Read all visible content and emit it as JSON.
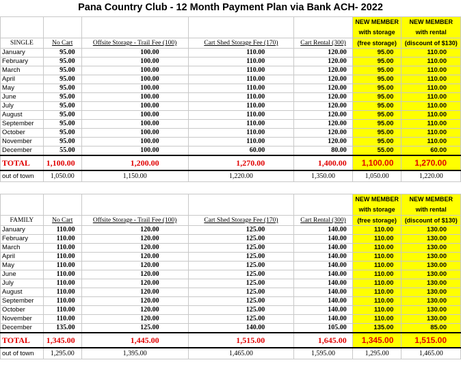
{
  "title": "Pana Country Club - 12 Month Payment Plan via Bank ACH- 2022",
  "new_member_header": {
    "storage_line1": "NEW MEMBER",
    "storage_line2": "with storage",
    "rental_line1": "NEW MEMBER",
    "rental_line2": "with rental"
  },
  "column_headers": [
    "No Cart",
    "Offsite Storage - Trail Fee (100)",
    "Cart Shed Storage Fee (170)",
    "Cart Rental (300)",
    "(free storage)",
    "(discount of $130)"
  ],
  "single": {
    "label": "SINGLE",
    "rows": [
      {
        "month": "January",
        "v": [
          "95.00",
          "100.00",
          "110.00",
          "120.00",
          "95.00",
          "110.00"
        ]
      },
      {
        "month": "February",
        "v": [
          "95.00",
          "100.00",
          "110.00",
          "120.00",
          "95.00",
          "110.00"
        ]
      },
      {
        "month": "March",
        "v": [
          "95.00",
          "100.00",
          "110.00",
          "120.00",
          "95.00",
          "110.00"
        ]
      },
      {
        "month": "April",
        "v": [
          "95.00",
          "100.00",
          "110.00",
          "120.00",
          "95.00",
          "110.00"
        ]
      },
      {
        "month": "May",
        "v": [
          "95.00",
          "100.00",
          "110.00",
          "120.00",
          "95.00",
          "110.00"
        ]
      },
      {
        "month": "June",
        "v": [
          "95.00",
          "100.00",
          "110.00",
          "120.00",
          "95.00",
          "110.00"
        ]
      },
      {
        "month": "July",
        "v": [
          "95.00",
          "100.00",
          "110.00",
          "120.00",
          "95.00",
          "110.00"
        ]
      },
      {
        "month": "August",
        "v": [
          "95.00",
          "100.00",
          "110.00",
          "120.00",
          "95.00",
          "110.00"
        ]
      },
      {
        "month": "September",
        "v": [
          "95.00",
          "100.00",
          "110.00",
          "120.00",
          "95.00",
          "110.00"
        ]
      },
      {
        "month": "October",
        "v": [
          "95.00",
          "100.00",
          "110.00",
          "120.00",
          "95.00",
          "110.00"
        ]
      },
      {
        "month": "November",
        "v": [
          "95.00",
          "100.00",
          "110.00",
          "120.00",
          "95.00",
          "110.00"
        ]
      },
      {
        "month": "December",
        "v": [
          "55.00",
          "100.00",
          "60.00",
          "80.00",
          "55.00",
          "60.00"
        ]
      }
    ],
    "total": {
      "label": "TOTAL",
      "v": [
        "1,100.00",
        "1,200.00",
        "1,270.00",
        "1,400.00",
        "1,100.00",
        "1,270.00"
      ]
    },
    "out_of_town": {
      "label": "out of town",
      "v": [
        "1,050.00",
        "1,150.00",
        "1,220.00",
        "1,350.00",
        "1,050.00",
        "1,220.00"
      ]
    }
  },
  "family": {
    "label": "FAMILY",
    "rows": [
      {
        "month": "January",
        "v": [
          "110.00",
          "120.00",
          "125.00",
          "140.00",
          "110.00",
          "130.00"
        ]
      },
      {
        "month": "February",
        "v": [
          "110.00",
          "120.00",
          "125.00",
          "140.00",
          "110.00",
          "130.00"
        ]
      },
      {
        "month": "March",
        "v": [
          "110.00",
          "120.00",
          "125.00",
          "140.00",
          "110.00",
          "130.00"
        ]
      },
      {
        "month": "April",
        "v": [
          "110.00",
          "120.00",
          "125.00",
          "140.00",
          "110.00",
          "130.00"
        ]
      },
      {
        "month": "May",
        "v": [
          "110.00",
          "120.00",
          "125.00",
          "140.00",
          "110.00",
          "130.00"
        ]
      },
      {
        "month": "June",
        "v": [
          "110.00",
          "120.00",
          "125.00",
          "140.00",
          "110.00",
          "130.00"
        ]
      },
      {
        "month": "July",
        "v": [
          "110.00",
          "120.00",
          "125.00",
          "140.00",
          "110.00",
          "130.00"
        ]
      },
      {
        "month": "August",
        "v": [
          "110.00",
          "120.00",
          "125.00",
          "140.00",
          "110.00",
          "130.00"
        ]
      },
      {
        "month": "September",
        "v": [
          "110.00",
          "120.00",
          "125.00",
          "140.00",
          "110.00",
          "130.00"
        ]
      },
      {
        "month": "October",
        "v": [
          "110.00",
          "120.00",
          "125.00",
          "140.00",
          "110.00",
          "130.00"
        ]
      },
      {
        "month": "November",
        "v": [
          "110.00",
          "120.00",
          "125.00",
          "140.00",
          "110.00",
          "130.00"
        ]
      },
      {
        "month": "December",
        "v": [
          "135.00",
          "125.00",
          "140.00",
          "105.00",
          "135.00",
          "85.00"
        ]
      }
    ],
    "total": {
      "label": "TOTAL",
      "v": [
        "1,345.00",
        "1,445.00",
        "1,515.00",
        "1,645.00",
        "1,345.00",
        "1,515.00"
      ]
    },
    "out_of_town": {
      "label": "out of town",
      "v": [
        "1,295.00",
        "1,395.00",
        "1,465.00",
        "1,595.00",
        "1,295.00",
        "1,465.00"
      ]
    }
  },
  "colors": {
    "highlight": "#ffff00",
    "total_text": "#e00000"
  }
}
